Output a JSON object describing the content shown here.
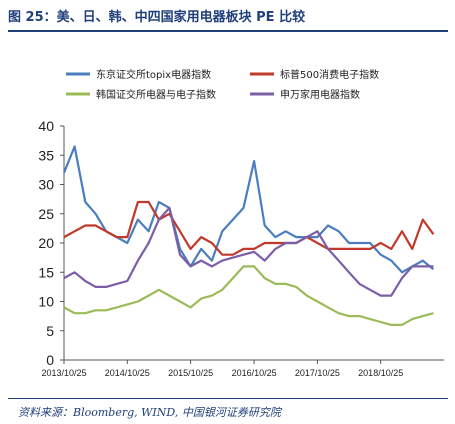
{
  "figure": {
    "title": "图 25：美、日、韩、中四国家用电器板块 PE 比较",
    "source": "资料来源：Bloomberg, WIND, 中国银河证券研究院"
  },
  "chart_data": {
    "type": "line",
    "title": "",
    "xlabel": "",
    "ylabel": "",
    "ylim": [
      0,
      40
    ],
    "yticks": [
      0,
      5,
      10,
      15,
      20,
      25,
      30,
      35,
      40
    ],
    "xlim": [
      "2013-10-25",
      "2019-10-25"
    ],
    "xticks": [
      "2013/10/25",
      "2014/10/25",
      "2015/10/25",
      "2016/10/25",
      "2017/10/25",
      "2018/10/25"
    ],
    "grid": false,
    "legend": "top",
    "x": [
      "2013-10-25",
      "2013-12-25",
      "2014-02-25",
      "2014-04-25",
      "2014-06-25",
      "2014-08-25",
      "2014-10-25",
      "2014-12-25",
      "2015-02-25",
      "2015-04-25",
      "2015-06-25",
      "2015-08-25",
      "2015-10-25",
      "2015-12-25",
      "2016-02-25",
      "2016-04-25",
      "2016-06-25",
      "2016-08-25",
      "2016-10-25",
      "2016-12-25",
      "2017-02-25",
      "2017-04-25",
      "2017-06-25",
      "2017-08-25",
      "2017-10-25",
      "2017-12-25",
      "2018-02-25",
      "2018-04-25",
      "2018-06-25",
      "2018-08-25",
      "2018-10-25",
      "2018-12-25",
      "2019-02-25",
      "2019-04-25",
      "2019-06-25",
      "2019-08-25"
    ],
    "series": [
      {
        "name": "东京证交所topix电器指数",
        "color": "#4a7ebf",
        "values": [
          32,
          36.5,
          27,
          25,
          22,
          21,
          20,
          24,
          22,
          27,
          26,
          19,
          16,
          19,
          17,
          22,
          24,
          26,
          34,
          23,
          21,
          22,
          21,
          21,
          21,
          23,
          22,
          20,
          20,
          20,
          18,
          17,
          15,
          16,
          17,
          15.5
        ]
      },
      {
        "name": "标普500消费电子指数",
        "color": "#c0392b",
        "values": [
          21,
          22,
          23,
          23,
          22,
          21,
          21,
          27,
          27,
          24,
          25,
          22,
          19,
          21,
          20,
          18,
          18,
          19,
          19,
          20,
          20,
          20,
          20,
          21,
          20,
          19,
          19,
          19,
          19,
          19,
          20,
          19,
          22,
          19,
          24,
          21.5
        ]
      },
      {
        "name": "韩国证交所电器与电子指数",
        "color": "#9bbb59",
        "values": [
          9,
          8,
          8,
          8.5,
          8.5,
          9,
          9.5,
          10,
          11,
          12,
          11,
          10,
          9,
          10.5,
          11,
          12,
          14,
          16,
          16,
          14,
          13,
          13,
          12.5,
          11,
          10,
          9,
          8,
          7.5,
          7.5,
          7,
          6.5,
          6,
          6,
          7,
          7.5,
          8
        ]
      },
      {
        "name": "申万家用电器指数",
        "color": "#7b5ea7",
        "values": [
          14,
          15,
          13.5,
          12.5,
          12.5,
          13,
          13.5,
          17,
          20,
          24,
          26,
          18,
          16,
          17,
          16,
          17,
          17.5,
          18,
          18.5,
          17,
          19,
          20,
          20,
          21,
          22,
          19,
          17,
          15,
          13,
          12,
          11,
          11,
          14,
          16,
          16,
          16
        ]
      }
    ]
  }
}
